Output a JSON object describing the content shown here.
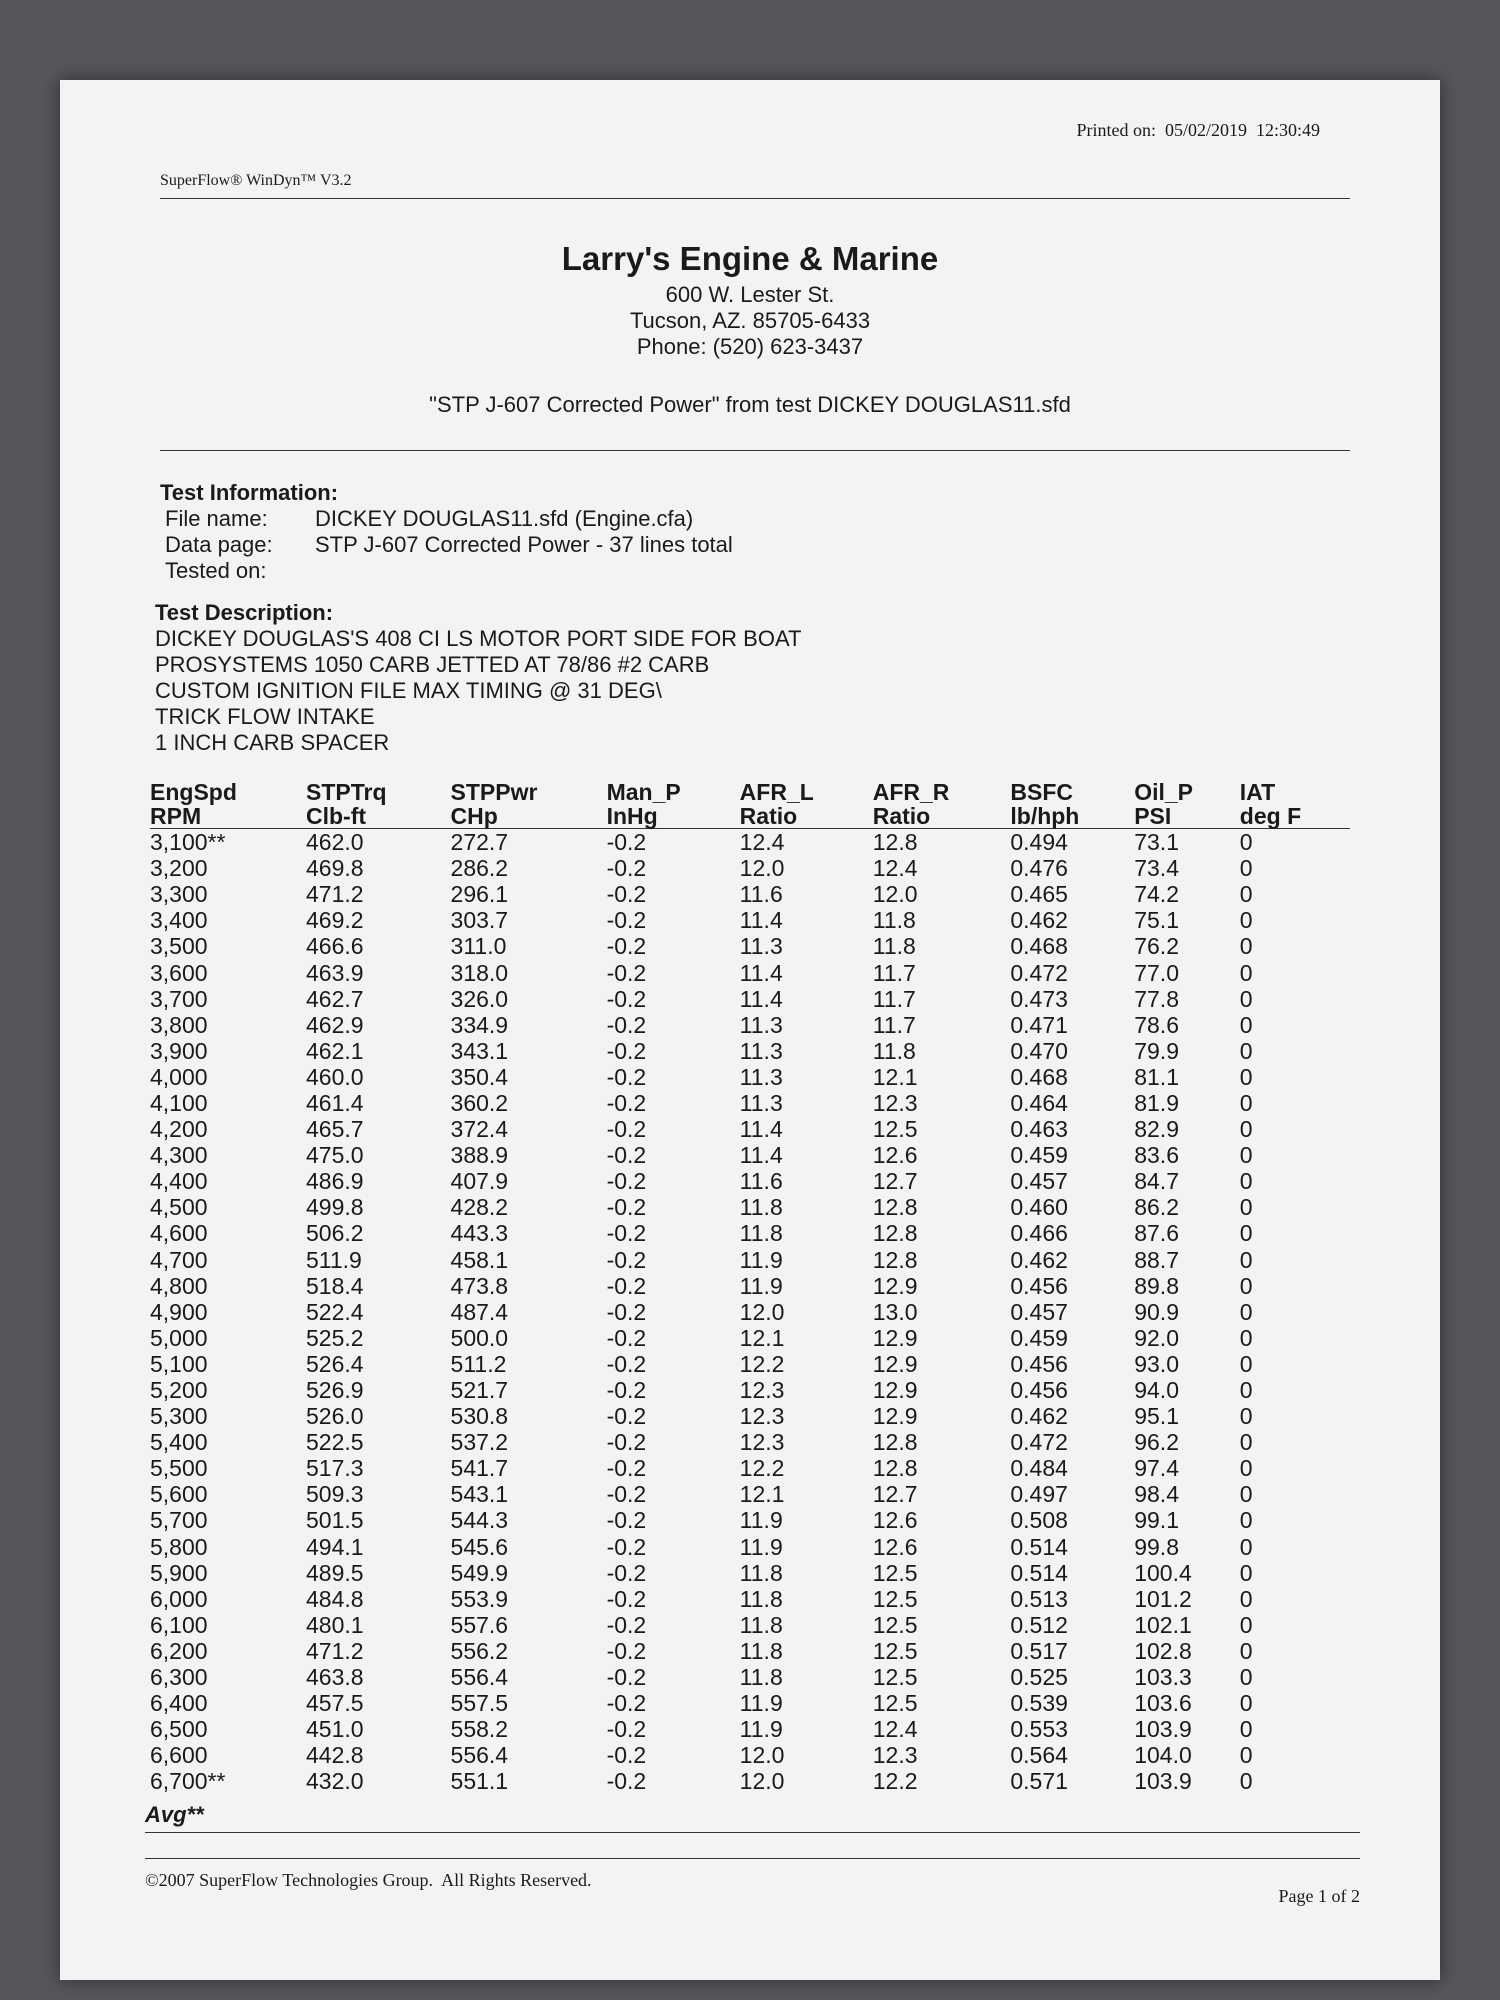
{
  "header": {
    "printed_on": "Printed on:  05/02/2019  12:30:49",
    "software": "SuperFlow® WinDyn™ V3.2"
  },
  "company": {
    "name": "Larry's Engine & Marine",
    "address": "600 W. Lester St.",
    "city": "Tucson, AZ. 85705-6433",
    "phone": "Phone: (520) 623-3437"
  },
  "report_title": "\"STP J-607 Corrected Power\" from test DICKEY DOUGLAS11.sfd",
  "test_information": {
    "heading": "Test Information:",
    "fields": [
      {
        "label": "File name:",
        "value": "DICKEY DOUGLAS11.sfd  (Engine.cfa)"
      },
      {
        "label": "Data page:",
        "value": "STP J-607 Corrected Power - 37 lines total"
      },
      {
        "label": "Tested on:"
      }
    ]
  },
  "test_description": {
    "heading": "Test Description:",
    "lines": [
      "DICKEY DOUGLAS'S 408 CI LS MOTOR PORT SIDE FOR BOAT",
      "PROSYSTEMS 1050 CARB JETTED AT 78/86 #2 CARB",
      "CUSTOM IGNITION FILE MAX TIMING @ 31 DEG\\",
      "TRICK FLOW INTAKE",
      "1 INCH CARB SPACER"
    ]
  },
  "table": {
    "columns": [
      {
        "name": "EngSpd",
        "unit": "RPM"
      },
      {
        "name": "STPTrq",
        "unit": "Clb-ft"
      },
      {
        "name": "STPPwr",
        "unit": "CHp"
      },
      {
        "name": "Man_P",
        "unit": "InHg"
      },
      {
        "name": "AFR_L",
        "unit": "Ratio"
      },
      {
        "name": "AFR_R",
        "unit": "Ratio"
      },
      {
        "name": "BSFC",
        "unit": "lb/hph"
      },
      {
        "name": "Oil_P",
        "unit": "PSI"
      },
      {
        "name": "IAT",
        "unit": "deg F"
      }
    ],
    "rows": [
      [
        "3,100**",
        "462.0",
        "272.7",
        "-0.2",
        "12.4",
        "12.8",
        "0.494",
        "73.1",
        "0"
      ],
      [
        "3,200",
        "469.8",
        "286.2",
        "-0.2",
        "12.0",
        "12.4",
        "0.476",
        "73.4",
        "0"
      ],
      [
        "3,300",
        "471.2",
        "296.1",
        "-0.2",
        "11.6",
        "12.0",
        "0.465",
        "74.2",
        "0"
      ],
      [
        "3,400",
        "469.2",
        "303.7",
        "-0.2",
        "11.4",
        "11.8",
        "0.462",
        "75.1",
        "0"
      ],
      [
        "3,500",
        "466.6",
        "311.0",
        "-0.2",
        "11.3",
        "11.8",
        "0.468",
        "76.2",
        "0"
      ],
      [
        "3,600",
        "463.9",
        "318.0",
        "-0.2",
        "11.4",
        "11.7",
        "0.472",
        "77.0",
        "0"
      ],
      [
        "3,700",
        "462.7",
        "326.0",
        "-0.2",
        "11.4",
        "11.7",
        "0.473",
        "77.8",
        "0"
      ],
      [
        "3,800",
        "462.9",
        "334.9",
        "-0.2",
        "11.3",
        "11.7",
        "0.471",
        "78.6",
        "0"
      ],
      [
        "3,900",
        "462.1",
        "343.1",
        "-0.2",
        "11.3",
        "11.8",
        "0.470",
        "79.9",
        "0"
      ],
      [
        "4,000",
        "460.0",
        "350.4",
        "-0.2",
        "11.3",
        "12.1",
        "0.468",
        "81.1",
        "0"
      ],
      [
        "4,100",
        "461.4",
        "360.2",
        "-0.2",
        "11.3",
        "12.3",
        "0.464",
        "81.9",
        "0"
      ],
      [
        "4,200",
        "465.7",
        "372.4",
        "-0.2",
        "11.4",
        "12.5",
        "0.463",
        "82.9",
        "0"
      ],
      [
        "4,300",
        "475.0",
        "388.9",
        "-0.2",
        "11.4",
        "12.6",
        "0.459",
        "83.6",
        "0"
      ],
      [
        "4,400",
        "486.9",
        "407.9",
        "-0.2",
        "11.6",
        "12.7",
        "0.457",
        "84.7",
        "0"
      ],
      [
        "4,500",
        "499.8",
        "428.2",
        "-0.2",
        "11.8",
        "12.8",
        "0.460",
        "86.2",
        "0"
      ],
      [
        "4,600",
        "506.2",
        "443.3",
        "-0.2",
        "11.8",
        "12.8",
        "0.466",
        "87.6",
        "0"
      ],
      [
        "4,700",
        "511.9",
        "458.1",
        "-0.2",
        "11.9",
        "12.8",
        "0.462",
        "88.7",
        "0"
      ],
      [
        "4,800",
        "518.4",
        "473.8",
        "-0.2",
        "11.9",
        "12.9",
        "0.456",
        "89.8",
        "0"
      ],
      [
        "4,900",
        "522.4",
        "487.4",
        "-0.2",
        "12.0",
        "13.0",
        "0.457",
        "90.9",
        "0"
      ],
      [
        "5,000",
        "525.2",
        "500.0",
        "-0.2",
        "12.1",
        "12.9",
        "0.459",
        "92.0",
        "0"
      ],
      [
        "5,100",
        "526.4",
        "511.2",
        "-0.2",
        "12.2",
        "12.9",
        "0.456",
        "93.0",
        "0"
      ],
      [
        "5,200",
        "526.9",
        "521.7",
        "-0.2",
        "12.3",
        "12.9",
        "0.456",
        "94.0",
        "0"
      ],
      [
        "5,300",
        "526.0",
        "530.8",
        "-0.2",
        "12.3",
        "12.9",
        "0.462",
        "95.1",
        "0"
      ],
      [
        "5,400",
        "522.5",
        "537.2",
        "-0.2",
        "12.3",
        "12.8",
        "0.472",
        "96.2",
        "0"
      ],
      [
        "5,500",
        "517.3",
        "541.7",
        "-0.2",
        "12.2",
        "12.8",
        "0.484",
        "97.4",
        "0"
      ],
      [
        "5,600",
        "509.3",
        "543.1",
        "-0.2",
        "12.1",
        "12.7",
        "0.497",
        "98.4",
        "0"
      ],
      [
        "5,700",
        "501.5",
        "544.3",
        "-0.2",
        "11.9",
        "12.6",
        "0.508",
        "99.1",
        "0"
      ],
      [
        "5,800",
        "494.1",
        "545.6",
        "-0.2",
        "11.9",
        "12.6",
        "0.514",
        "99.8",
        "0"
      ],
      [
        "5,900",
        "489.5",
        "549.9",
        "-0.2",
        "11.8",
        "12.5",
        "0.514",
        "100.4",
        "0"
      ],
      [
        "6,000",
        "484.8",
        "553.9",
        "-0.2",
        "11.8",
        "12.5",
        "0.513",
        "101.2",
        "0"
      ],
      [
        "6,100",
        "480.1",
        "557.6",
        "-0.2",
        "11.8",
        "12.5",
        "0.512",
        "102.1",
        "0"
      ],
      [
        "6,200",
        "471.2",
        "556.2",
        "-0.2",
        "11.8",
        "12.5",
        "0.517",
        "102.8",
        "0"
      ],
      [
        "6,300",
        "463.8",
        "556.4",
        "-0.2",
        "11.8",
        "12.5",
        "0.525",
        "103.3",
        "0"
      ],
      [
        "6,400",
        "457.5",
        "557.5",
        "-0.2",
        "11.9",
        "12.5",
        "0.539",
        "103.6",
        "0"
      ],
      [
        "6,500",
        "451.0",
        "558.2",
        "-0.2",
        "11.9",
        "12.4",
        "0.553",
        "103.9",
        "0"
      ],
      [
        "6,600",
        "442.8",
        "556.4",
        "-0.2",
        "12.0",
        "12.3",
        "0.564",
        "104.0",
        "0"
      ],
      [
        "6,700**",
        "432.0",
        "551.1",
        "-0.2",
        "12.0",
        "12.2",
        "0.571",
        "103.9",
        "0"
      ]
    ],
    "summary_label": "Avg**"
  },
  "footer": {
    "copyright": "©2007 SuperFlow Technologies Group.  All Rights Reserved.",
    "page": "Page 1 of 2"
  }
}
